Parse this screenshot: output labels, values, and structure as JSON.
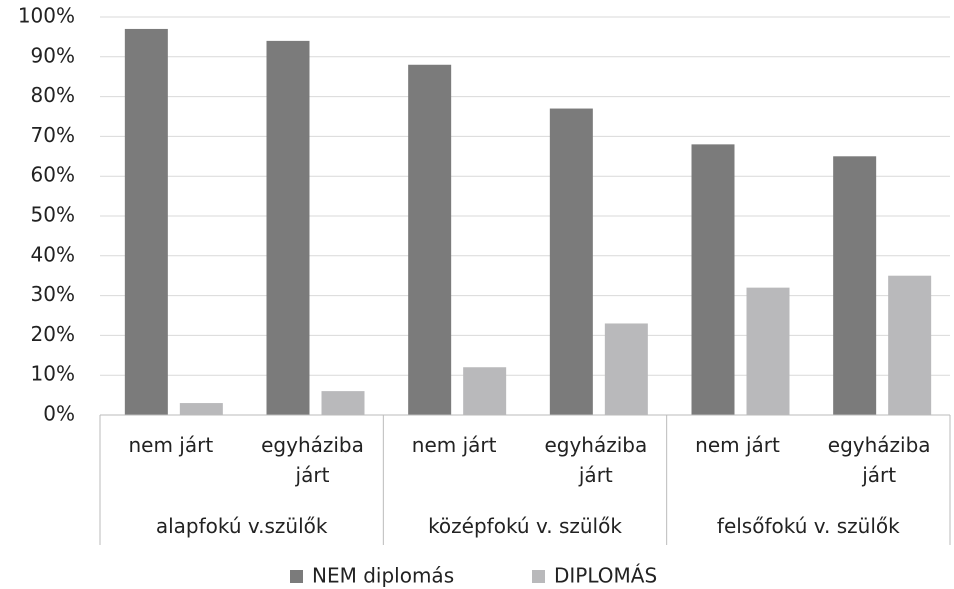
{
  "chart_data": {
    "type": "bar",
    "categories": [
      "nem járt",
      "egyháziba járt",
      "nem járt",
      "egyháziba járt",
      "nem járt",
      "egyháziba járt"
    ],
    "groups": [
      "alapfokú v.szülők",
      "középfokú v. szülők",
      "felsőfokú v. szülők"
    ],
    "series": [
      {
        "name": "NEM diplomás",
        "color": "#7b7b7b",
        "values": [
          97,
          94,
          88,
          77,
          68,
          65
        ]
      },
      {
        "name": "DIPLOMÁS",
        "color": "#b9b9bb",
        "values": [
          3,
          6,
          12,
          23,
          32,
          35
        ]
      }
    ],
    "ylim": [
      0,
      100
    ],
    "yticks": [
      {
        "value": 0,
        "label": "0%"
      },
      {
        "value": 10,
        "label": "10%"
      },
      {
        "value": 20,
        "label": "20%"
      },
      {
        "value": 30,
        "label": "30%"
      },
      {
        "value": 40,
        "label": "40%"
      },
      {
        "value": 50,
        "label": "50%"
      },
      {
        "value": 60,
        "label": "60%"
      },
      {
        "value": 70,
        "label": "70%"
      },
      {
        "value": 80,
        "label": "80%"
      },
      {
        "value": 90,
        "label": "90%"
      },
      {
        "value": 100,
        "label": "100%"
      }
    ],
    "grid": true,
    "legend": "bottom"
  }
}
